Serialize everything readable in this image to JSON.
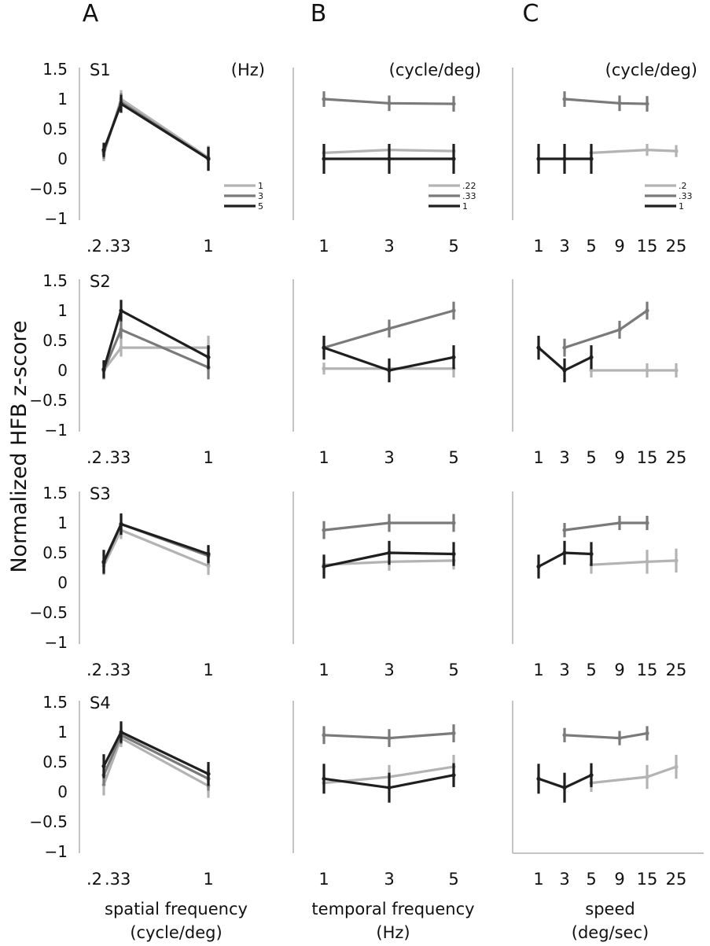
{
  "figure": {
    "panel_letters": [
      "A",
      "B",
      "C"
    ],
    "ylabel": "Normalized HFB z-score",
    "ytick_labels": [
      "1.5",
      "1",
      "0.5",
      "0",
      "−0.5",
      "−1"
    ],
    "subjects": [
      "S1",
      "S2",
      "S3",
      "S4"
    ],
    "column_units": [
      "(Hz)",
      "(cycle/deg)",
      "(cycle/deg)"
    ],
    "legends": [
      [
        "1",
        "3",
        "5"
      ],
      [
        ".22",
        ".33",
        "1"
      ],
      [
        ".2",
        ".33",
        "1"
      ]
    ],
    "xlabels": [
      [
        "spatial frequency",
        "(cycle/deg)"
      ],
      [
        "temporal frequency",
        "(Hz)"
      ],
      [
        "speed",
        "(deg/sec)"
      ]
    ],
    "xtick_labels": [
      [
        ".2",
        ".33",
        "1"
      ],
      [
        "1",
        "3",
        "5"
      ],
      [
        "1",
        "3",
        "5",
        "9",
        "15",
        "25"
      ]
    ]
  },
  "colors": {
    "light": "#b3b3b3",
    "mid": "#7a7a7a",
    "dark": "#1f1f1f",
    "axis": "#c4c4c4"
  },
  "chart_data": [
    {
      "type": "line",
      "panel": "A",
      "subject": "S1",
      "xlabel": "spatial frequency (cycle/deg)",
      "ylabel": "Normalized HFB z-score",
      "x": [
        0.2,
        0.33,
        1
      ],
      "ylim": [
        -1,
        1.5
      ],
      "legend_title": "(Hz)",
      "series": [
        {
          "name": "1",
          "color": "light",
          "values": [
            0.08,
            1.0,
            0.02
          ],
          "err": [
            0.12,
            0.15,
            0.2
          ]
        },
        {
          "name": "3",
          "color": "mid",
          "values": [
            0.12,
            0.95,
            0.0
          ],
          "err": [
            0.12,
            0.15,
            0.2
          ]
        },
        {
          "name": "5",
          "color": "dark",
          "values": [
            0.15,
            0.92,
            0.0
          ],
          "err": [
            0.12,
            0.15,
            0.2
          ]
        }
      ]
    },
    {
      "type": "line",
      "panel": "B",
      "subject": "S1",
      "xlabel": "temporal frequency (Hz)",
      "ylabel": "Normalized HFB z-score",
      "x": [
        1,
        3,
        5
      ],
      "ylim": [
        -1,
        1.5
      ],
      "legend_title": "(cycle/deg)",
      "series": [
        {
          "name": ".22",
          "color": "light",
          "values": [
            0.1,
            0.15,
            0.13
          ],
          "err": [
            0.1,
            0.1,
            0.1
          ]
        },
        {
          "name": ".33",
          "color": "mid",
          "values": [
            1.0,
            0.93,
            0.92
          ],
          "err": [
            0.13,
            0.13,
            0.13
          ]
        },
        {
          "name": "1",
          "color": "dark",
          "values": [
            0.0,
            0.0,
            0.0
          ],
          "err": [
            0.25,
            0.25,
            0.25
          ]
        }
      ]
    },
    {
      "type": "line",
      "panel": "C",
      "subject": "S1",
      "xlabel": "speed (deg/sec)",
      "ylabel": "Normalized HFB z-score",
      "x": [
        1,
        3,
        5,
        9,
        15,
        25
      ],
      "ylim": [
        -1,
        1.5
      ],
      "legend_title": "(cycle/deg)",
      "series": [
        {
          "name": ".2",
          "color": "light",
          "x": [
            5,
            15,
            25
          ],
          "values": [
            0.1,
            0.15,
            0.13
          ],
          "err": [
            0.1,
            0.1,
            0.1
          ]
        },
        {
          "name": ".33",
          "color": "mid",
          "x": [
            3,
            9,
            15
          ],
          "values": [
            1.0,
            0.93,
            0.92
          ],
          "err": [
            0.13,
            0.13,
            0.13
          ]
        },
        {
          "name": "1",
          "color": "dark",
          "x": [
            1,
            3,
            5
          ],
          "values": [
            0.0,
            0.0,
            0.0
          ],
          "err": [
            0.25,
            0.25,
            0.25
          ]
        }
      ]
    },
    {
      "type": "line",
      "panel": "A",
      "subject": "S2",
      "xlabel": "spatial frequency (cycle/deg)",
      "ylabel": "Normalized HFB z-score",
      "x": [
        0.2,
        0.33,
        1
      ],
      "ylim": [
        -1,
        1.5
      ],
      "series": [
        {
          "name": "1",
          "color": "light",
          "values": [
            0.0,
            0.38,
            0.38
          ],
          "err": [
            0.15,
            0.15,
            0.2
          ]
        },
        {
          "name": "3",
          "color": "mid",
          "values": [
            0.0,
            0.68,
            0.05
          ],
          "err": [
            0.15,
            0.15,
            0.2
          ]
        },
        {
          "name": "5",
          "color": "dark",
          "values": [
            0.02,
            1.0,
            0.22
          ],
          "err": [
            0.15,
            0.18,
            0.2
          ]
        }
      ]
    },
    {
      "type": "line",
      "panel": "B",
      "subject": "S2",
      "xlabel": "temporal frequency (Hz)",
      "ylabel": "Normalized HFB z-score",
      "x": [
        1,
        3,
        5
      ],
      "ylim": [
        -1,
        1.5
      ],
      "series": [
        {
          "name": ".22",
          "color": "light",
          "values": [
            0.03,
            0.03,
            0.03
          ],
          "err": [
            0.1,
            0.15,
            0.15
          ]
        },
        {
          "name": ".33",
          "color": "mid",
          "values": [
            0.38,
            0.7,
            1.0
          ],
          "err": [
            0.15,
            0.15,
            0.15
          ]
        },
        {
          "name": "1",
          "color": "dark",
          "values": [
            0.38,
            0.0,
            0.22
          ],
          "err": [
            0.2,
            0.2,
            0.2
          ]
        }
      ]
    },
    {
      "type": "line",
      "panel": "C",
      "subject": "S2",
      "xlabel": "speed (deg/sec)",
      "ylabel": "Normalized HFB z-score",
      "x": [
        1,
        3,
        5,
        9,
        15,
        25
      ],
      "ylim": [
        -1,
        1.5
      ],
      "series": [
        {
          "name": ".2",
          "color": "light",
          "x": [
            5,
            15,
            25
          ],
          "values": [
            0.0,
            0.0,
            0.0
          ],
          "err": [
            0.12,
            0.12,
            0.12
          ]
        },
        {
          "name": ".33",
          "color": "mid",
          "x": [
            3,
            9,
            15
          ],
          "values": [
            0.38,
            0.68,
            1.0
          ],
          "err": [
            0.15,
            0.15,
            0.15
          ]
        },
        {
          "name": "1",
          "color": "dark",
          "x": [
            1,
            3,
            5
          ],
          "values": [
            0.38,
            0.0,
            0.22
          ],
          "err": [
            0.2,
            0.2,
            0.2
          ]
        }
      ]
    },
    {
      "type": "line",
      "panel": "A",
      "subject": "S3",
      "xlabel": "spatial frequency (cycle/deg)",
      "ylabel": "Normalized HFB z-score",
      "x": [
        0.2,
        0.33,
        1
      ],
      "ylim": [
        -1,
        1.5
      ],
      "series": [
        {
          "name": "1",
          "color": "light",
          "values": [
            0.28,
            0.88,
            0.28
          ],
          "err": [
            0.15,
            0.15,
            0.15
          ]
        },
        {
          "name": "3",
          "color": "mid",
          "values": [
            0.33,
            0.98,
            0.45
          ],
          "err": [
            0.15,
            0.15,
            0.15
          ]
        },
        {
          "name": "5",
          "color": "dark",
          "values": [
            0.35,
            0.98,
            0.48
          ],
          "err": [
            0.2,
            0.18,
            0.15
          ]
        }
      ]
    },
    {
      "type": "line",
      "panel": "B",
      "subject": "S3",
      "xlabel": "temporal frequency (Hz)",
      "ylabel": "Normalized HFB z-score",
      "x": [
        1,
        3,
        5
      ],
      "ylim": [
        -1,
        1.5
      ],
      "series": [
        {
          "name": ".22",
          "color": "light",
          "values": [
            0.3,
            0.35,
            0.37
          ],
          "err": [
            0.15,
            0.15,
            0.15
          ]
        },
        {
          "name": ".33",
          "color": "mid",
          "values": [
            0.88,
            1.0,
            1.0
          ],
          "err": [
            0.15,
            0.15,
            0.15
          ]
        },
        {
          "name": "1",
          "color": "dark",
          "values": [
            0.27,
            0.5,
            0.48
          ],
          "err": [
            0.2,
            0.2,
            0.2
          ]
        }
      ]
    },
    {
      "type": "line",
      "panel": "C",
      "subject": "S3",
      "xlabel": "speed (deg/sec)",
      "ylabel": "Normalized HFB z-score",
      "x": [
        1,
        3,
        5,
        9,
        15,
        25
      ],
      "ylim": [
        -1,
        1.5
      ],
      "series": [
        {
          "name": ".2",
          "color": "light",
          "x": [
            5,
            15,
            25
          ],
          "values": [
            0.3,
            0.35,
            0.37
          ],
          "err": [
            0.15,
            0.2,
            0.2
          ]
        },
        {
          "name": ".33",
          "color": "mid",
          "x": [
            3,
            9,
            15
          ],
          "values": [
            0.88,
            1.0,
            1.0
          ],
          "err": [
            0.12,
            0.12,
            0.12
          ]
        },
        {
          "name": "1",
          "color": "dark",
          "x": [
            1,
            3,
            5
          ],
          "values": [
            0.27,
            0.5,
            0.48
          ],
          "err": [
            0.2,
            0.2,
            0.2
          ]
        }
      ]
    },
    {
      "type": "line",
      "panel": "A",
      "subject": "S4",
      "xlabel": "spatial frequency (cycle/deg)",
      "ylabel": "Normalized HFB z-score",
      "x": [
        0.2,
        0.33,
        1
      ],
      "ylim": [
        -1,
        1.5
      ],
      "series": [
        {
          "name": "1",
          "color": "light",
          "values": [
            0.12,
            0.9,
            0.1
          ],
          "err": [
            0.18,
            0.15,
            0.2
          ]
        },
        {
          "name": "3",
          "color": "mid",
          "values": [
            0.28,
            0.95,
            0.22
          ],
          "err": [
            0.18,
            0.15,
            0.2
          ]
        },
        {
          "name": "5",
          "color": "dark",
          "values": [
            0.43,
            1.0,
            0.3
          ],
          "err": [
            0.2,
            0.18,
            0.2
          ]
        }
      ]
    },
    {
      "type": "line",
      "panel": "B",
      "subject": "S4",
      "xlabel": "temporal frequency (Hz)",
      "ylabel": "Normalized HFB z-score",
      "x": [
        1,
        3,
        5
      ],
      "ylim": [
        -1,
        1.5
      ],
      "series": [
        {
          "name": ".22",
          "color": "light",
          "values": [
            0.15,
            0.25,
            0.42
          ],
          "err": [
            0.15,
            0.2,
            0.2
          ]
        },
        {
          "name": ".33",
          "color": "mid",
          "values": [
            0.95,
            0.9,
            0.98
          ],
          "err": [
            0.15,
            0.15,
            0.15
          ]
        },
        {
          "name": "1",
          "color": "dark",
          "values": [
            0.22,
            0.07,
            0.28
          ],
          "err": [
            0.25,
            0.25,
            0.2
          ]
        }
      ]
    },
    {
      "type": "line",
      "panel": "C",
      "subject": "S4",
      "xlabel": "speed (deg/sec)",
      "ylabel": "Normalized HFB z-score",
      "x": [
        1,
        3,
        5,
        9,
        15,
        25
      ],
      "ylim": [
        -1,
        1.5
      ],
      "series": [
        {
          "name": ".2",
          "color": "light",
          "x": [
            5,
            15,
            25
          ],
          "values": [
            0.15,
            0.25,
            0.42
          ],
          "err": [
            0.15,
            0.2,
            0.2
          ]
        },
        {
          "name": ".33",
          "color": "mid",
          "x": [
            3,
            9,
            15
          ],
          "values": [
            0.95,
            0.9,
            0.98
          ],
          "err": [
            0.12,
            0.12,
            0.12
          ]
        },
        {
          "name": "1",
          "color": "dark",
          "x": [
            1,
            3,
            5
          ],
          "values": [
            0.22,
            0.07,
            0.28
          ],
          "err": [
            0.25,
            0.25,
            0.2
          ]
        }
      ]
    }
  ]
}
